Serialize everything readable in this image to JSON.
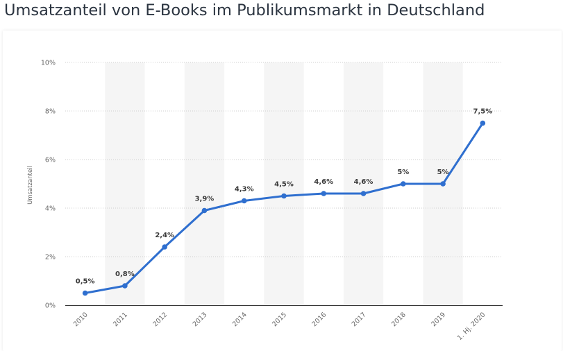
{
  "title": "Umsatzanteil von E-Books im Publikumsmarkt in Deutschland",
  "chart_data": {
    "type": "line",
    "title": "Umsatzanteil von E-Books im Publikumsmarkt in Deutschland",
    "xlabel": "",
    "ylabel": "Umsatzanteil",
    "ylim": [
      0,
      10
    ],
    "y_unit": "%",
    "y_ticks": [
      "0%",
      "2%",
      "4%",
      "6%",
      "8%",
      "10%"
    ],
    "y_tick_values": [
      0,
      2,
      4,
      6,
      8,
      10
    ],
    "grid": "horizontal dotted",
    "alternating_column_bands": true,
    "categories": [
      "2010",
      "2011",
      "2012",
      "2013",
      "2014",
      "2015",
      "2016",
      "2017",
      "2018",
      "2019",
      "1. Hj. 2020"
    ],
    "values": [
      0.5,
      0.8,
      2.4,
      3.9,
      4.3,
      4.5,
      4.6,
      4.6,
      5,
      5,
      7.5
    ],
    "data_labels": [
      "0,5%",
      "0,8%",
      "2,4%",
      "3,9%",
      "4,3%",
      "4,5%",
      "4,6%",
      "4,6%",
      "5%",
      "5%",
      "7,5%"
    ],
    "line_color": "#2f6fcf",
    "band_color": "#f5f5f5"
  }
}
